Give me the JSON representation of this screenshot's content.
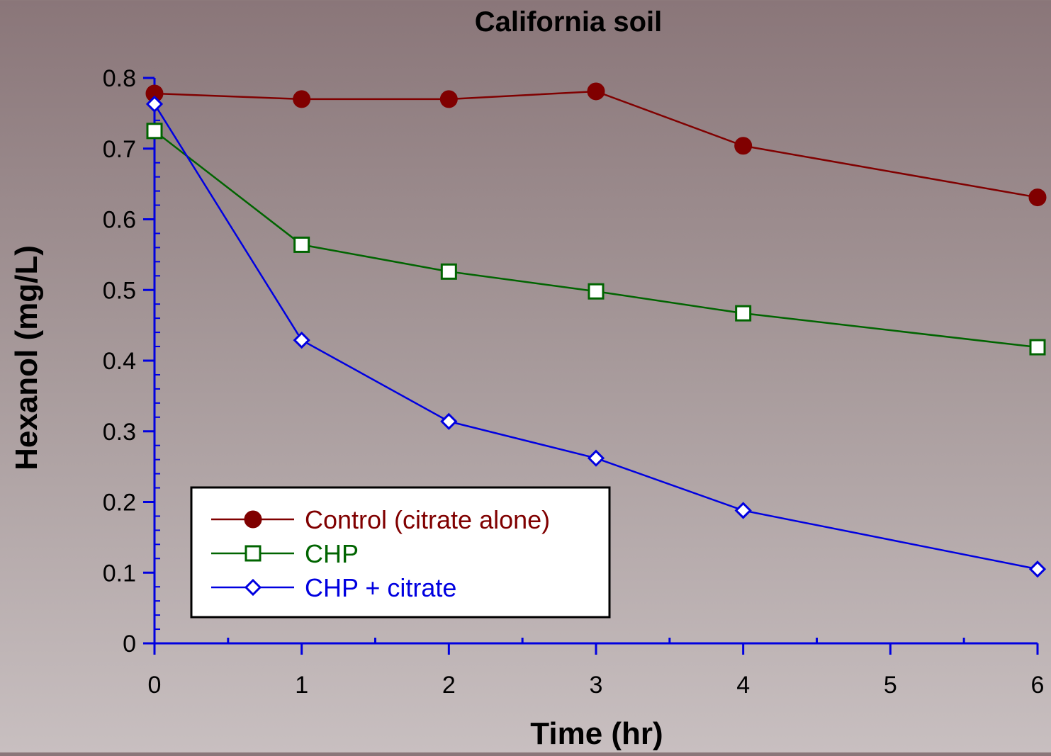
{
  "chart_data": {
    "type": "line",
    "title": "California soil",
    "xlabel": "Time (hr)",
    "ylabel": "Hexanol (mg/L)",
    "xlim": [
      0,
      6
    ],
    "ylim": [
      0,
      0.8
    ],
    "xticks": [
      "0",
      "1",
      "2",
      "3",
      "4",
      "5",
      "6"
    ],
    "yticks": [
      "0",
      "0.1",
      "0.2",
      "0.3",
      "0.4",
      "0.5",
      "0.6",
      "0.7",
      "0.8"
    ],
    "grid": false,
    "legend_position": "bottom-left",
    "series": [
      {
        "name": "Control (citrate alone)",
        "color": "#800000",
        "marker": "filled-circle",
        "x": [
          0,
          1,
          2,
          3,
          4,
          6
        ],
        "y": [
          0.778,
          0.77,
          0.77,
          0.781,
          0.704,
          0.631
        ]
      },
      {
        "name": "CHP",
        "color": "#006400",
        "marker": "open-square",
        "x": [
          0,
          1,
          2,
          3,
          4,
          6
        ],
        "y": [
          0.725,
          0.564,
          0.526,
          0.498,
          0.467,
          0.419
        ]
      },
      {
        "name": "CHP + citrate",
        "color": "#0000e0",
        "marker": "open-diamond",
        "x": [
          0,
          1,
          2,
          3,
          4,
          6
        ],
        "y": [
          0.763,
          0.429,
          0.314,
          0.262,
          0.188,
          0.105
        ]
      }
    ]
  },
  "colors": {
    "axis": "#0000e0",
    "text": "#000000"
  }
}
